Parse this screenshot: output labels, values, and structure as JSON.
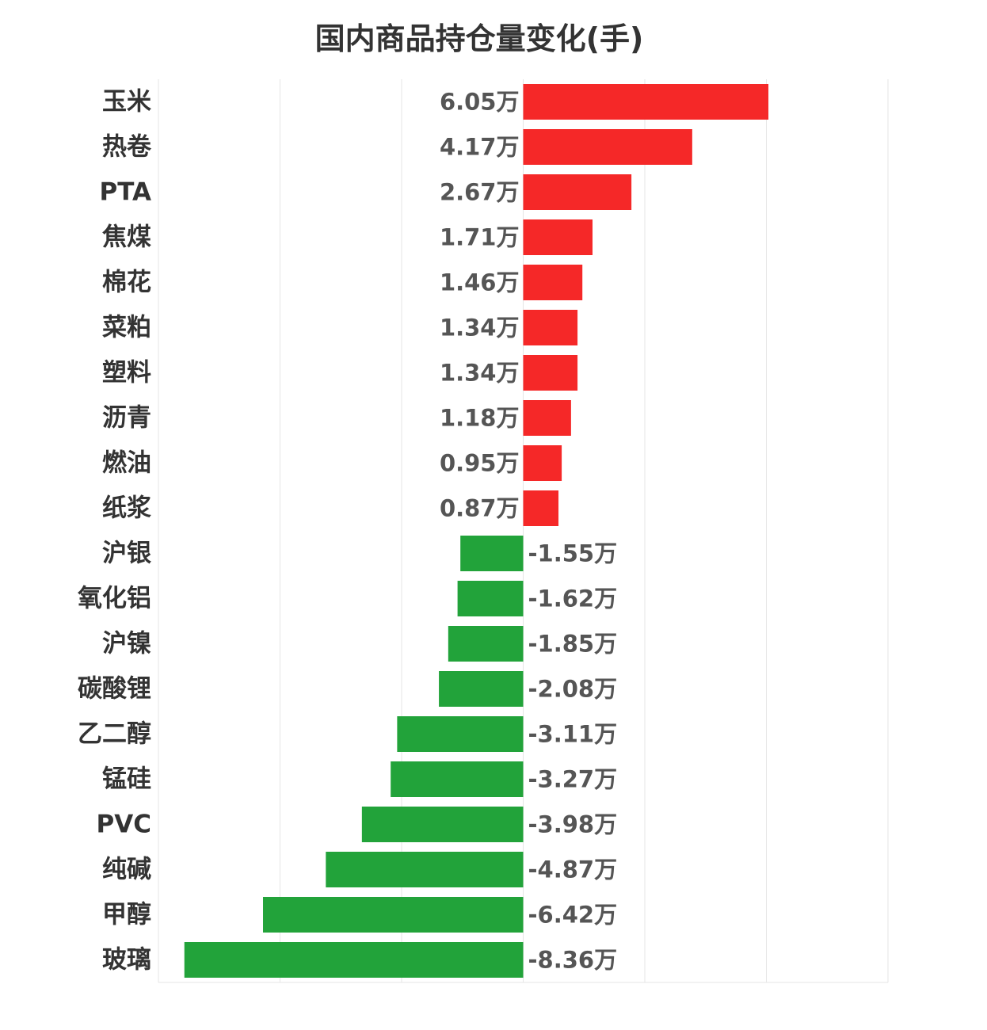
{
  "chart_data": {
    "type": "bar",
    "orientation": "horizontal",
    "title": "国内商品持仓量变化(手)",
    "unit_suffix": "万",
    "xlabel": "",
    "ylabel": "",
    "xlim": [
      -9,
      9
    ],
    "grid": true,
    "legend": false,
    "colors": {
      "positive": "#f52828",
      "negative": "#22a33a"
    },
    "categories": [
      "玉米",
      "热卷",
      "PTA",
      "焦煤",
      "棉花",
      "菜粕",
      "塑料",
      "沥青",
      "燃油",
      "纸浆",
      "沪银",
      "氧化铝",
      "沪镍",
      "碳酸锂",
      "乙二醇",
      "锰硅",
      "PVC",
      "纯碱",
      "甲醇",
      "玻璃"
    ],
    "values": [
      6.05,
      4.17,
      2.67,
      1.71,
      1.46,
      1.34,
      1.34,
      1.18,
      0.95,
      0.87,
      -1.55,
      -1.62,
      -1.85,
      -2.08,
      -3.11,
      -3.27,
      -3.98,
      -4.87,
      -6.42,
      -8.36
    ],
    "value_labels": [
      "6.05万",
      "4.17万",
      "2.67万",
      "1.71万",
      "1.46万",
      "1.34万",
      "1.34万",
      "1.18万",
      "0.95万",
      "0.87万",
      "-1.55万",
      "-1.62万",
      "-1.85万",
      "-2.08万",
      "-3.11万",
      "-3.27万",
      "-3.98万",
      "-4.87万",
      "-6.42万",
      "-8.36万"
    ]
  }
}
